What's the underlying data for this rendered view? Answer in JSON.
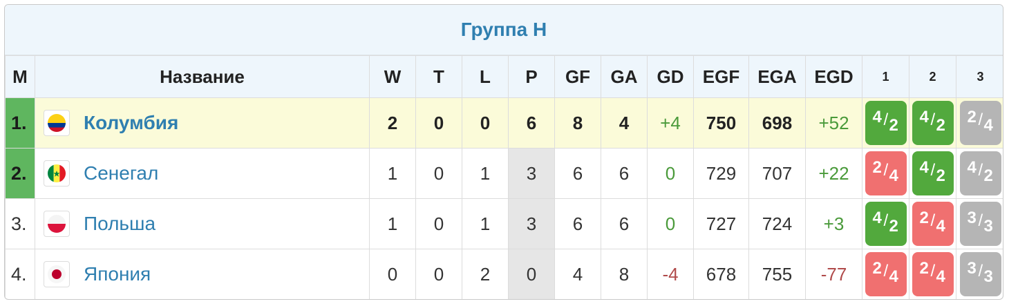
{
  "title": "Группа H",
  "headers": {
    "pos": "М",
    "name": "Название",
    "w": "W",
    "t": "T",
    "l": "L",
    "p": "P",
    "gf": "GF",
    "ga": "GA",
    "gd": "GD",
    "egf": "EGF",
    "ega": "EGA",
    "egd": "EGD",
    "r1": "1",
    "r2": "2",
    "r3": "3"
  },
  "colors": {
    "qualified": "#5fb65f",
    "win": "#52a93d",
    "loss": "#f07070",
    "draw": "#b5b5b5",
    "link": "#2f7fb0"
  },
  "rows": [
    {
      "pos": "1.",
      "team": "Колумбия",
      "flag": "colombia-flag-icon",
      "w": "2",
      "t": "0",
      "l": "0",
      "p": "6",
      "gf": "8",
      "ga": "4",
      "gd": "+4",
      "egf": "750",
      "ega": "698",
      "egd": "+52",
      "results": [
        {
          "a": "4",
          "b": "2",
          "kind": "win"
        },
        {
          "a": "4",
          "b": "2",
          "kind": "win"
        },
        {
          "a": "2",
          "b": "4",
          "kind": "draw"
        }
      ]
    },
    {
      "pos": "2.",
      "team": "Сенегал",
      "flag": "senegal-flag-icon",
      "w": "1",
      "t": "0",
      "l": "1",
      "p": "3",
      "gf": "6",
      "ga": "6",
      "gd": "0",
      "egf": "729",
      "ega": "707",
      "egd": "+22",
      "results": [
        {
          "a": "2",
          "b": "4",
          "kind": "loss"
        },
        {
          "a": "4",
          "b": "2",
          "kind": "win"
        },
        {
          "a": "4",
          "b": "2",
          "kind": "draw"
        }
      ]
    },
    {
      "pos": "3.",
      "team": "Польша",
      "flag": "poland-flag-icon",
      "w": "1",
      "t": "0",
      "l": "1",
      "p": "3",
      "gf": "6",
      "ga": "6",
      "gd": "0",
      "egf": "727",
      "ega": "724",
      "egd": "+3",
      "results": [
        {
          "a": "4",
          "b": "2",
          "kind": "win"
        },
        {
          "a": "2",
          "b": "4",
          "kind": "loss"
        },
        {
          "a": "3",
          "b": "3",
          "kind": "draw"
        }
      ]
    },
    {
      "pos": "4.",
      "team": "Япония",
      "flag": "japan-flag-icon",
      "w": "0",
      "t": "0",
      "l": "2",
      "p": "0",
      "gf": "4",
      "ga": "8",
      "gd": "-4",
      "egf": "678",
      "ega": "755",
      "egd": "-77",
      "results": [
        {
          "a": "2",
          "b": "4",
          "kind": "loss"
        },
        {
          "a": "2",
          "b": "4",
          "kind": "loss"
        },
        {
          "a": "3",
          "b": "3",
          "kind": "draw"
        }
      ]
    }
  ]
}
